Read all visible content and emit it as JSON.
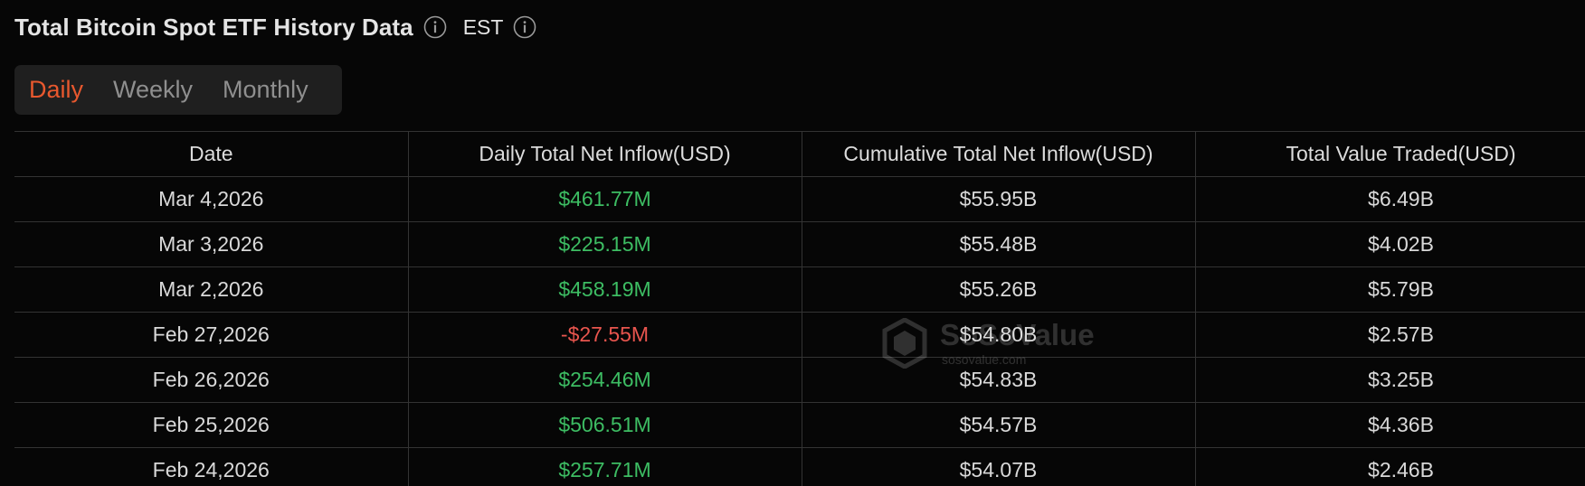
{
  "header": {
    "title": "Total Bitcoin Spot ETF History Data",
    "timezone": "EST"
  },
  "tabs": [
    {
      "label": "Daily",
      "active": true
    },
    {
      "label": "Weekly",
      "active": false
    },
    {
      "label": "Monthly",
      "active": false
    }
  ],
  "table": {
    "columns": [
      "Date",
      "Daily Total Net Inflow(USD)",
      "Cumulative Total Net Inflow(USD)",
      "Total Value Traded(USD)"
    ],
    "rows": [
      {
        "date": "Mar 4,2026",
        "daily_net_inflow": "$461.77M",
        "cumulative_net_inflow": "$55.95B",
        "total_value_traded": "$6.49B",
        "inflow_sign": "positive"
      },
      {
        "date": "Mar 3,2026",
        "daily_net_inflow": "$225.15M",
        "cumulative_net_inflow": "$55.48B",
        "total_value_traded": "$4.02B",
        "inflow_sign": "positive"
      },
      {
        "date": "Mar 2,2026",
        "daily_net_inflow": "$458.19M",
        "cumulative_net_inflow": "$55.26B",
        "total_value_traded": "$5.79B",
        "inflow_sign": "positive"
      },
      {
        "date": "Feb 27,2026",
        "daily_net_inflow": "-$27.55M",
        "cumulative_net_inflow": "$54.80B",
        "total_value_traded": "$2.57B",
        "inflow_sign": "negative"
      },
      {
        "date": "Feb 26,2026",
        "daily_net_inflow": "$254.46M",
        "cumulative_net_inflow": "$54.83B",
        "total_value_traded": "$3.25B",
        "inflow_sign": "positive"
      },
      {
        "date": "Feb 25,2026",
        "daily_net_inflow": "$506.51M",
        "cumulative_net_inflow": "$54.57B",
        "total_value_traded": "$4.36B",
        "inflow_sign": "positive"
      },
      {
        "date": "Feb 24,2026",
        "daily_net_inflow": "$257.71M",
        "cumulative_net_inflow": "$54.07B",
        "total_value_traded": "$2.46B",
        "inflow_sign": "positive"
      }
    ]
  },
  "watermark": {
    "brand": "SoSoValue",
    "url": "sosovalue.com"
  },
  "icons": {
    "title_info": "info-icon",
    "timezone_info": "info-icon",
    "watermark_logo": "sosovalue-logo-icon"
  },
  "colors": {
    "background": "#060606",
    "active_tab": "#e8582e",
    "positive": "#3dbd63",
    "negative": "#e8554e"
  }
}
